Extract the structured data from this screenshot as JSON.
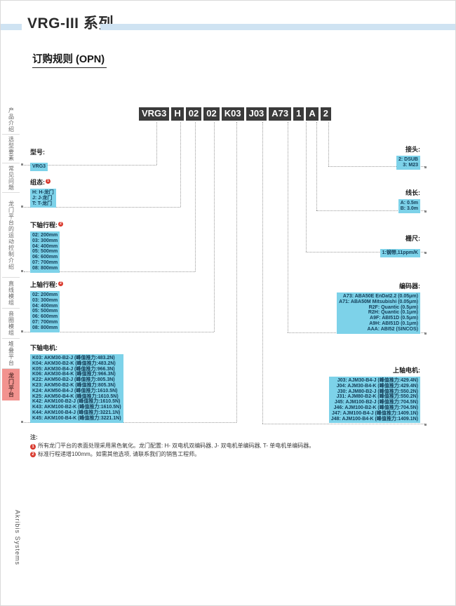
{
  "page": {
    "title": "VRG-III 系列",
    "subtitle": "订购规则 (OPN)",
    "brand_vertical": "Akribis Systems"
  },
  "sidebar": {
    "tabs": [
      {
        "label": "产品介绍",
        "active": false
      },
      {
        "label": "选型要素",
        "active": false
      },
      {
        "label": "常见问题",
        "active": false
      },
      {
        "label": "龙门平台的运动控制介绍",
        "active": false
      },
      {
        "label": "直线模组",
        "active": false
      },
      {
        "label": "音圈模组",
        "active": false
      },
      {
        "label": "堆叠平台",
        "active": false
      },
      {
        "label": "龙门平台",
        "active": true
      }
    ]
  },
  "model_code": {
    "segments": [
      "VRG3",
      "H",
      "02",
      "02",
      "K03",
      "J03",
      "A73",
      "1",
      "A",
      "2"
    ]
  },
  "groups": {
    "model": {
      "label": "型号:",
      "options": [
        "VRG3"
      ]
    },
    "config": {
      "label": "组态:",
      "marker": "1",
      "options": [
        "H: H-龙门",
        "J: J-龙门",
        "T: T-龙门"
      ]
    },
    "lower_stroke": {
      "label": "下轴行程:",
      "marker": "2",
      "options": [
        "02: 200mm",
        "03: 300mm",
        "04: 400mm",
        "05: 500mm",
        "06: 600mm",
        "07: 700mm",
        "08: 800mm"
      ]
    },
    "upper_stroke": {
      "label": "上轴行程:",
      "marker": "2",
      "options": [
        "02: 200mm",
        "03: 300mm",
        "04: 400mm",
        "05: 500mm",
        "06: 600mm",
        "07: 700mm",
        "08: 800mm"
      ]
    },
    "lower_motor": {
      "label": "下轴电机:",
      "options": [
        "K03: AKM30-B2-J (峰值推力:483.2N)",
        "K04: AKM30-B2-K (峰值推力:483.2N)",
        "K05: AKM30-B4-J (峰值推力:966.3N)",
        "K06: AKM30-B4-K (峰值推力:966.3N)",
        "K22: AKM50-B2-J (峰值推力:805.3N)",
        "K23: AKM50-B2-K (峰值推力:805.3N)",
        "K24: AKM50-B4-J (峰值推力:1610.5N)",
        "K25: AKM50-B4-K (峰值推力:1610.5N)",
        "K42: AKM100-B2-J (峰值推力:1610.5N)",
        "K43: AKM100-B2-K (峰值推力:1610.5N)",
        "K44: AKM100-B4-J (峰值推力:3221.1N)",
        "K45: AKM100-B4-K (峰值推力:3221.1N)"
      ]
    },
    "connector": {
      "label": "接头:",
      "options": [
        "2: DSUB",
        "3: M23"
      ]
    },
    "cable_length": {
      "label": "线长:",
      "options": [
        "A: 0.5m",
        "B: 3.0m"
      ]
    },
    "scale": {
      "label": "栅尺:",
      "options": [
        "1:钢带,11ppm/K"
      ]
    },
    "encoder": {
      "label": "编码器:",
      "options": [
        "A73: ABA50E EnDat2.2 (0.05μm)",
        "A71: ABA50M Mitsubishi (0.05μm)",
        "R2F: Quantic (0.5μm)",
        "R2H: Quantic (0.1μm)",
        "A9F: ABI51D (0.5μm)",
        "A9H: ABI51D (0.1μm)",
        "AAA: ABI52 (SINCOS)"
      ]
    },
    "upper_motor": {
      "label": "上轴电机:",
      "options": [
        "J03: AJM30-B4-J (峰值推力:429.4N)",
        "J04: AJM30-B4-K (峰值推力:429.4N)",
        "J30: AJM80-B2-J (峰值推力:550.2N)",
        "J31: AJM80-B2-K (峰值推力:550.2N)",
        "J45: AJM100-B2-J (峰值推力:704.5N)",
        "J46: AJM100-B2-K (峰值推力:704.5N)",
        "J47: AJM100-B4-J (峰值推力:1409.1N)",
        "J48: AJM100-B4-K (峰值推力:1409.1N)"
      ]
    }
  },
  "notes": {
    "heading": "注:",
    "items": [
      {
        "marker": "1",
        "text": "所有龙门平台的表面处理采用黑色氧化。龙门配置: H- 双电机双编码器, J- 双电机单编码器, T- 单电机单编码器。"
      },
      {
        "marker": "2",
        "text": "标准行程递增100mm。如需其他选项, 请联系我们的销售工程师。"
      }
    ]
  },
  "colors": {
    "option_box": "#7DD2E9",
    "code_box": "#3B3B3B",
    "title_bar": "#CFE3F2",
    "active_tab": "#F2938F",
    "note_marker": "#D93A2E"
  }
}
